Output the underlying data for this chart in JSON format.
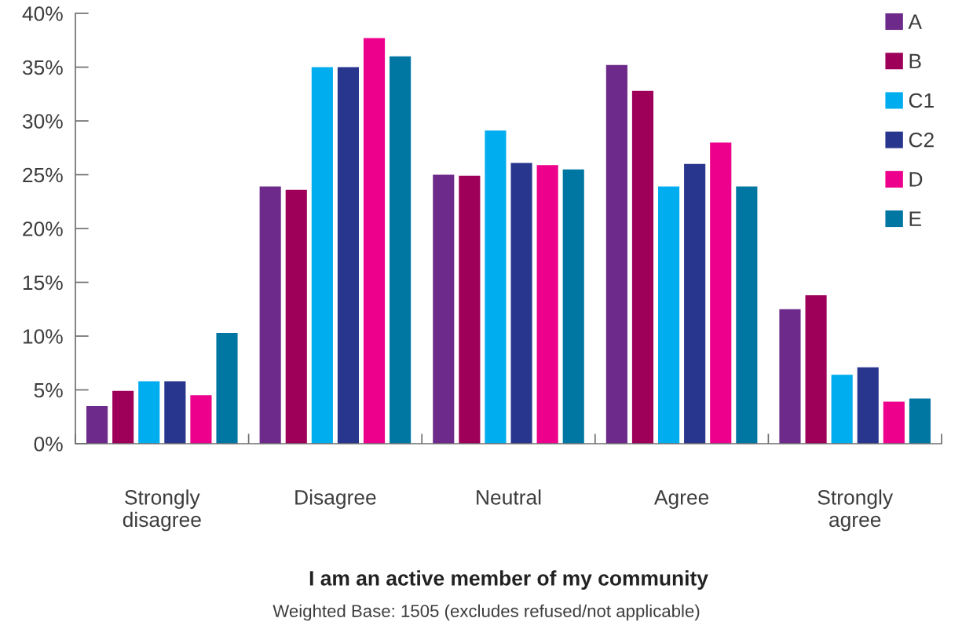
{
  "chart_data": {
    "type": "bar",
    "xlabel": "I am an active member of my community",
    "annotations": [
      "Weighted Base: 1505 (excludes refused/not applicable)"
    ],
    "categories": [
      "Strongly disagree",
      "Disagree",
      "Neutral",
      "Agree",
      "Strongly agree"
    ],
    "series": [
      {
        "name": "A",
        "color": "#6d2a8a",
        "values": [
          3.5,
          23.9,
          25.0,
          35.2,
          12.5
        ]
      },
      {
        "name": "B",
        "color": "#9e0059",
        "values": [
          4.9,
          23.6,
          24.9,
          32.8,
          13.8
        ]
      },
      {
        "name": "C1",
        "color": "#00adef",
        "values": [
          5.8,
          35.0,
          29.1,
          23.9,
          6.4
        ]
      },
      {
        "name": "C2",
        "color": "#28368e",
        "values": [
          5.8,
          35.0,
          26.1,
          26.0,
          7.1
        ]
      },
      {
        "name": "D",
        "color": "#ec008c",
        "values": [
          4.5,
          37.7,
          25.9,
          28.0,
          3.9
        ]
      },
      {
        "name": "E",
        "color": "#0077a3",
        "values": [
          10.3,
          36.0,
          25.5,
          23.9,
          4.2
        ]
      }
    ],
    "ylim": [
      0,
      40
    ],
    "yticks": [
      {
        "value": 0,
        "label": "0%"
      },
      {
        "value": 5,
        "label": "5%"
      },
      {
        "value": 10,
        "label": "10%"
      },
      {
        "value": 15,
        "label": "15%"
      },
      {
        "value": 20,
        "label": "20%"
      },
      {
        "value": 25,
        "label": "25%"
      },
      {
        "value": 30,
        "label": "30%"
      },
      {
        "value": 35,
        "label": "35%"
      },
      {
        "value": 40,
        "label": "40%"
      }
    ],
    "grid": false,
    "legend": "top right"
  }
}
